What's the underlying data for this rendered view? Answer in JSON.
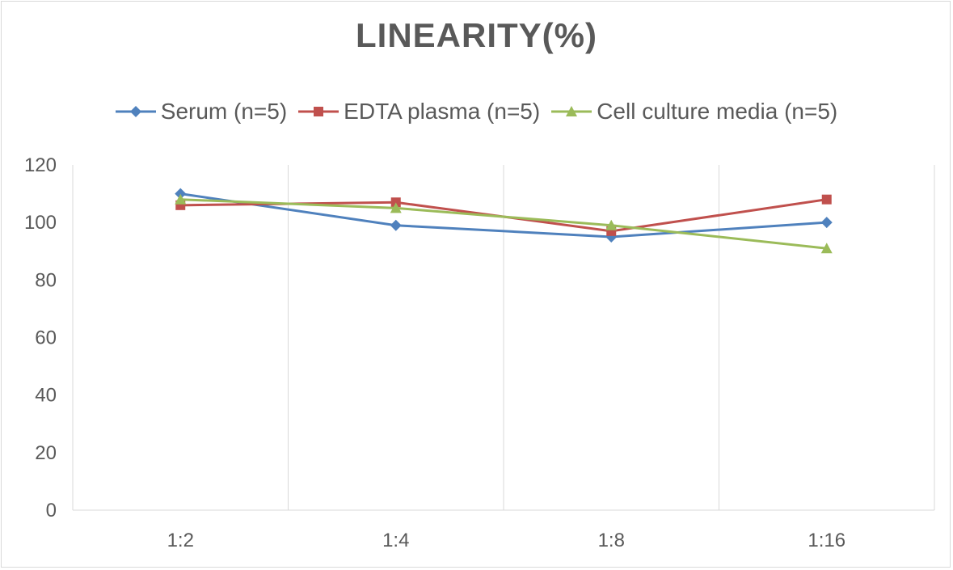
{
  "chart_data": {
    "type": "line",
    "title": "LINEARITY(%)",
    "categories": [
      "1:2",
      "1:4",
      "1:8",
      "1:16"
    ],
    "ylim": [
      0,
      120
    ],
    "yticks": [
      0,
      20,
      40,
      60,
      80,
      100,
      120
    ],
    "grid": true,
    "legend_position": "top",
    "series": [
      {
        "name": "Serum (n=5)",
        "values": [
          110,
          99,
          95,
          100
        ],
        "color": "#4f81bd",
        "marker": "diamond"
      },
      {
        "name": "EDTA plasma (n=5)",
        "values": [
          106,
          107,
          97,
          108
        ],
        "color": "#c0504d",
        "marker": "square"
      },
      {
        "name": "Cell culture media (n=5)",
        "values": [
          108,
          105,
          99,
          91
        ],
        "color": "#9bbb59",
        "marker": "triangle"
      }
    ]
  }
}
